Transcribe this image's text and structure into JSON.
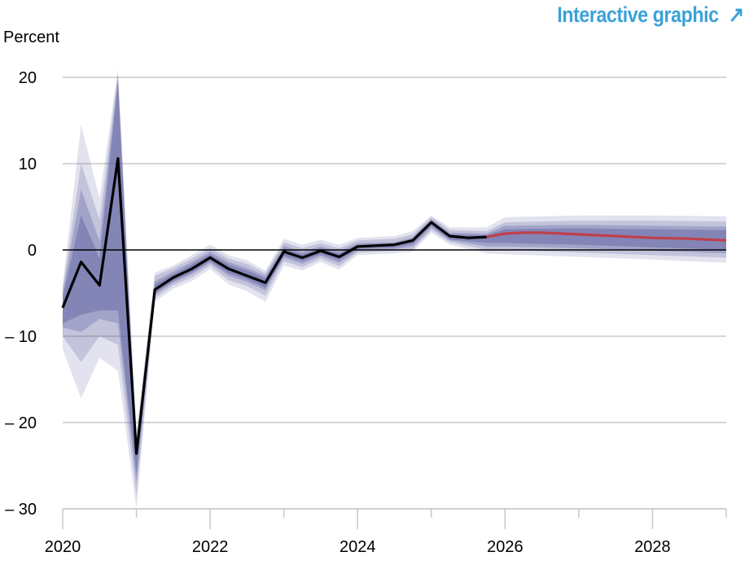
{
  "link": {
    "label": "Interactive graphic",
    "arrow": "↗"
  },
  "chart_data": {
    "type": "line",
    "ylabel": "Percent",
    "ylim": [
      -30,
      20
    ],
    "yticks": [
      20,
      10,
      0,
      -10,
      -20,
      -30
    ],
    "ytick_labels": [
      "20",
      "10",
      "0",
      "– 10",
      "– 20",
      "– 30"
    ],
    "xlim": [
      2020.0,
      2029.0
    ],
    "xticks_major": [
      2020,
      2022,
      2024,
      2026,
      2028
    ],
    "xticks_minor": [
      2021,
      2023,
      2025,
      2027,
      2029
    ],
    "grid": true,
    "colors": {
      "history": "#000000",
      "forecast": "#c0404a",
      "band": "#55579a",
      "grid": "#c8c8cc",
      "link": "#3ba1d8"
    },
    "history": {
      "x": [
        2020.0,
        2020.25,
        2020.5,
        2020.75,
        2021.0,
        2021.25,
        2021.5,
        2021.75,
        2022.0,
        2022.25,
        2022.5,
        2022.75,
        2023.0,
        2023.25,
        2023.5,
        2023.75,
        2024.0,
        2024.25,
        2024.5,
        2024.75,
        2025.0,
        2025.25,
        2025.5,
        2025.75
      ],
      "y": [
        -6.7,
        -1.4,
        -4.1,
        10.6,
        -23.6,
        -4.6,
        -3.2,
        -2.2,
        -0.9,
        -2.2,
        -3.0,
        -3.8,
        -0.2,
        -0.9,
        -0.1,
        -0.8,
        0.4,
        0.5,
        0.6,
        1.1,
        3.2,
        1.6,
        1.4,
        1.5
      ]
    },
    "forecast": {
      "x": [
        2025.75,
        2026.0,
        2026.25,
        2026.5,
        2026.75,
        2027.0,
        2027.5,
        2028.0,
        2028.5,
        2029.0
      ],
      "y": [
        1.5,
        1.9,
        2.0,
        2.0,
        1.9,
        1.8,
        1.6,
        1.4,
        1.3,
        1.1
      ]
    },
    "bands": [
      {
        "level": "outer",
        "opacity": 0.17,
        "x": [
          2020.0,
          2020.25,
          2020.5,
          2020.75,
          2021.0,
          2021.25,
          2021.5,
          2021.75,
          2022.0,
          2022.25,
          2022.5,
          2022.75,
          2023.0,
          2023.25,
          2023.5,
          2023.75,
          2024.0,
          2024.5,
          2024.75,
          2025.0,
          2025.25,
          2025.75,
          2026.0,
          2027.0,
          2028.0,
          2029.0
        ],
        "lower": [
          -11.5,
          -17.2,
          -12.5,
          -14.0,
          -30.0,
          -6.0,
          -4.5,
          -3.6,
          -2.2,
          -4.0,
          -4.8,
          -6.0,
          -1.8,
          -2.4,
          -1.4,
          -2.3,
          -0.6,
          -0.4,
          -0.2,
          2.0,
          0.6,
          -0.4,
          -0.5,
          -0.8,
          -1.1,
          -1.5
        ],
        "upper": [
          -4.0,
          14.5,
          6.0,
          21.0,
          -21.0,
          -2.6,
          -1.8,
          -0.6,
          0.6,
          -0.6,
          -1.2,
          -2.4,
          1.3,
          0.6,
          1.2,
          0.6,
          1.4,
          1.6,
          2.2,
          4.0,
          2.6,
          2.6,
          3.8,
          4.0,
          4.0,
          3.9
        ]
      },
      {
        "level": "mid",
        "opacity": 0.22,
        "x": [
          2020.0,
          2020.25,
          2020.5,
          2020.75,
          2021.0,
          2021.25,
          2021.5,
          2021.75,
          2022.0,
          2022.25,
          2022.5,
          2022.75,
          2023.0,
          2023.25,
          2023.5,
          2023.75,
          2024.0,
          2024.5,
          2024.75,
          2025.0,
          2025.25,
          2025.75,
          2026.0,
          2027.0,
          2028.0,
          2029.0
        ],
        "lower": [
          -10.0,
          -13.0,
          -10.0,
          -11.0,
          -28.5,
          -5.6,
          -4.1,
          -3.2,
          -1.8,
          -3.5,
          -4.2,
          -5.3,
          -1.3,
          -2.0,
          -1.0,
          -1.9,
          -0.3,
          -0.1,
          0.1,
          2.3,
          0.9,
          0.0,
          0.0,
          -0.3,
          -0.6,
          -0.9
        ],
        "upper": [
          -4.5,
          10.0,
          3.5,
          20.5,
          -22.0,
          -3.0,
          -2.1,
          -1.0,
          0.2,
          -1.0,
          -1.6,
          -2.7,
          0.9,
          0.2,
          0.8,
          0.2,
          1.1,
          1.3,
          1.8,
          3.8,
          2.3,
          2.2,
          3.2,
          3.4,
          3.4,
          3.3
        ]
      },
      {
        "level": "inner",
        "opacity": 0.3,
        "x": [
          2020.0,
          2020.25,
          2020.5,
          2020.75,
          2021.0,
          2021.25,
          2021.5,
          2021.75,
          2022.0,
          2022.25,
          2022.5,
          2022.75,
          2023.0,
          2023.25,
          2023.5,
          2023.75,
          2024.0,
          2024.5,
          2024.75,
          2025.0,
          2025.25,
          2025.75,
          2026.0,
          2027.0,
          2028.0,
          2029.0
        ],
        "lower": [
          -9.0,
          -9.5,
          -8.0,
          -8.5,
          -27.0,
          -5.2,
          -3.8,
          -2.8,
          -1.5,
          -3.0,
          -3.7,
          -4.7,
          -0.9,
          -1.6,
          -0.7,
          -1.5,
          -0.1,
          0.1,
          0.4,
          2.6,
          1.1,
          0.4,
          0.4,
          0.2,
          -0.1,
          -0.4
        ],
        "upper": [
          -5.0,
          7.0,
          1.0,
          20.0,
          -23.0,
          -3.6,
          -2.5,
          -1.4,
          -0.2,
          -1.4,
          -2.1,
          -3.0,
          0.5,
          -0.2,
          0.4,
          -0.1,
          0.8,
          0.9,
          1.5,
          3.6,
          2.0,
          1.9,
          2.8,
          2.9,
          2.8,
          2.7
        ]
      },
      {
        "level": "core",
        "opacity": 0.4,
        "x": [
          2020.0,
          2020.25,
          2020.5,
          2020.75,
          2021.0,
          2021.25,
          2021.5,
          2021.75,
          2022.0,
          2022.25,
          2022.5,
          2022.75,
          2023.0,
          2023.25,
          2023.5,
          2023.75,
          2024.0,
          2024.5,
          2024.75,
          2025.0,
          2025.25,
          2025.75,
          2026.0,
          2027.0,
          2028.0,
          2029.0
        ],
        "lower": [
          -8.5,
          -7.5,
          -7.0,
          -7.0,
          -26.0,
          -5.0,
          -3.6,
          -2.6,
          -1.3,
          -2.7,
          -3.4,
          -4.4,
          -0.7,
          -1.3,
          -0.5,
          -1.2,
          0.1,
          0.3,
          0.7,
          2.8,
          1.2,
          0.8,
          0.8,
          0.6,
          0.3,
          0.0
        ],
        "upper": [
          -5.5,
          4.0,
          -1.0,
          19.5,
          -24.0,
          -4.0,
          -2.8,
          -1.7,
          -0.5,
          -1.7,
          -2.4,
          -3.3,
          0.2,
          -0.5,
          0.2,
          -0.4,
          0.6,
          0.7,
          1.3,
          3.4,
          1.8,
          1.7,
          2.4,
          2.5,
          2.4,
          2.3
        ]
      }
    ]
  }
}
